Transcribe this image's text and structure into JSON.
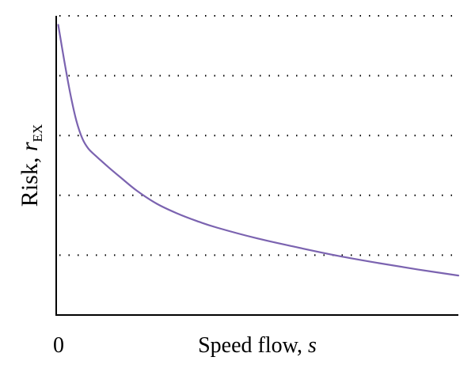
{
  "chart_data": {
    "type": "line",
    "x_tick_label": "0",
    "xlabel": {
      "text": "Speed flow, ",
      "symbol": "s"
    },
    "ylabel": {
      "text": "Risk, ",
      "symbol": "r",
      "subscript": "EX"
    },
    "xlim": [
      0,
      10
    ],
    "ylim": [
      0,
      5
    ],
    "grid": {
      "y": true,
      "style": "dotted",
      "levels": [
        1,
        2,
        3,
        4,
        5
      ]
    },
    "series": [
      {
        "color": "#7b63b0",
        "x": [
          0.05,
          0.2,
          0.35,
          0.5,
          0.65,
          0.8,
          1.0,
          1.3,
          1.6,
          2.0,
          2.5,
          3.0,
          3.5,
          4.0,
          5.0,
          6.0,
          7.0,
          8.0,
          9.0,
          10.0
        ],
        "y": [
          4.85,
          4.25,
          3.7,
          3.25,
          2.95,
          2.78,
          2.65,
          2.47,
          2.3,
          2.08,
          1.86,
          1.7,
          1.57,
          1.46,
          1.28,
          1.13,
          0.99,
          0.87,
          0.76,
          0.66
        ]
      }
    ]
  }
}
